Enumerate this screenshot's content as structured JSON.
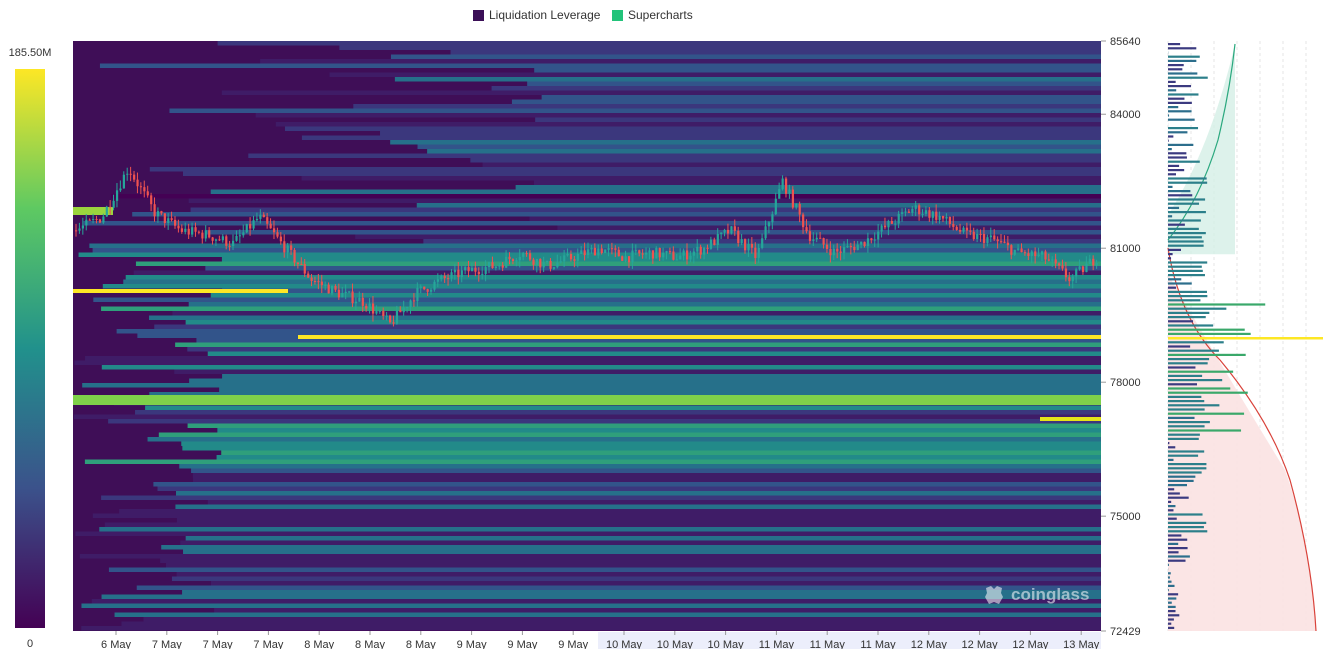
{
  "legend": [
    {
      "label": "Liquidation Leverage",
      "color": "#3b0f57"
    },
    {
      "label": "Supercharts",
      "color": "#22c37a"
    }
  ],
  "colorbar": {
    "max_label": "185.50M",
    "min_label": "0"
  },
  "watermark": {
    "text": "coinglass",
    "icon": "coinglass-logo-icon"
  },
  "chart_data": {
    "type": "heatmap",
    "title": "",
    "legend_position": "top-center",
    "y_axis": {
      "ticks": [
        85640,
        84000,
        81000,
        78000,
        75000,
        72429
      ],
      "ylim": [
        72429,
        85640
      ]
    },
    "x_axis": {
      "tick_labels": [
        "6 May",
        "7 May",
        "7 May",
        "7 May",
        "8 May",
        "8 May",
        "8 May",
        "9 May",
        "9 May",
        "9 May",
        "10 May",
        "10 May",
        "10 May",
        "11 May",
        "11 May",
        "11 May",
        "12 May",
        "12 May",
        "12 May",
        "13 May"
      ]
    },
    "colorscale": {
      "min": 0,
      "max": 185.5,
      "unit": "M",
      "colors": [
        "#440154",
        "#3b528b",
        "#21918c",
        "#5ec962",
        "#fde725"
      ]
    },
    "price_series_approx": [
      81400,
      81700,
      82800,
      81800,
      81400,
      81300,
      81100,
      81700,
      81000,
      80300,
      80000,
      79800,
      79300,
      80000,
      80300,
      80500,
      80600,
      80900,
      80600,
      80800,
      81000,
      80800,
      80900,
      80800,
      81000,
      81400,
      80800,
      82500,
      81300,
      80900,
      81100,
      81500,
      81900,
      81700,
      81300,
      81200,
      80900,
      80800,
      80300,
      80800
    ]
  }
}
